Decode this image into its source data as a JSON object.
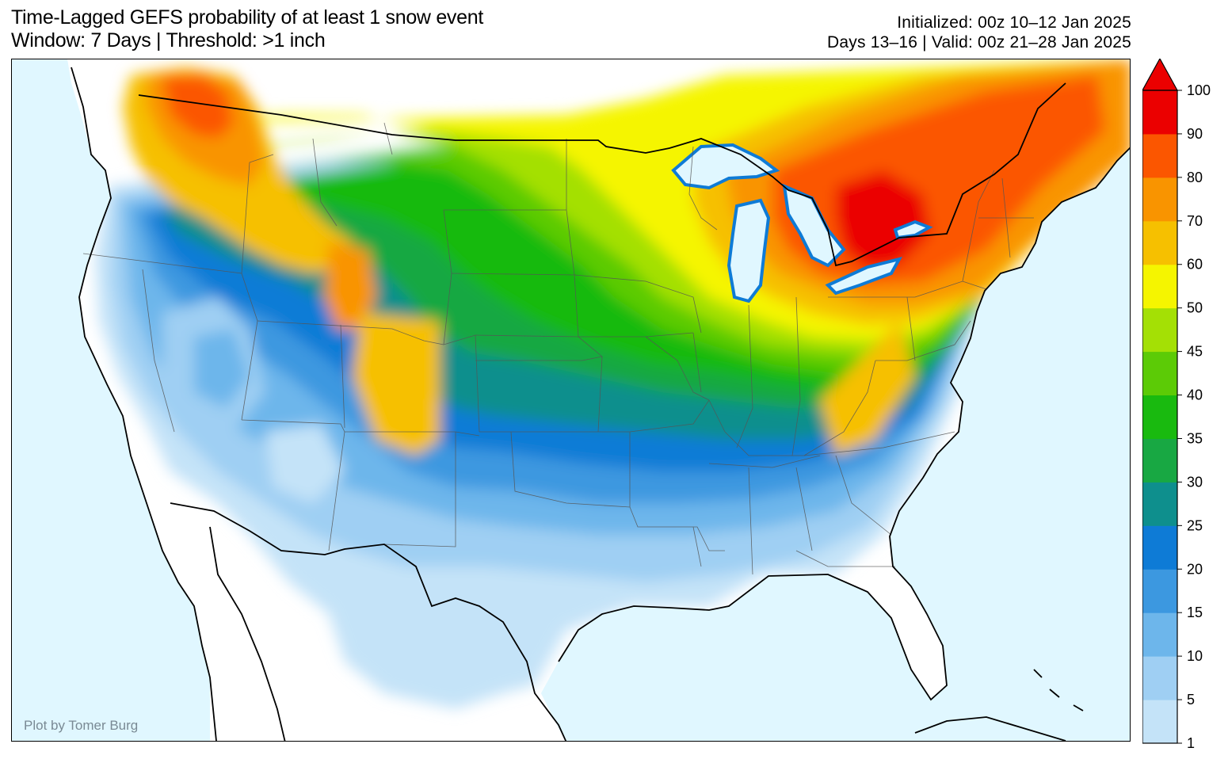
{
  "header": {
    "title_line1": "Time-Lagged GEFS probability of at least 1 snow event",
    "title_line2": "Window: 7 Days | Threshold: >1 inch",
    "init_line": "Initialized: 00z 10–12 Jan 2025",
    "valid_line": "Days 13–16 | Valid: 00z 21–28 Jan 2025"
  },
  "credit": "Plot by Tomer Burg",
  "colors": {
    "ocean": "#e0f7ff",
    "land_no_data": "#ffffff"
  },
  "colorbar": {
    "levels": [
      1,
      5,
      10,
      15,
      20,
      25,
      30,
      35,
      40,
      45,
      50,
      60,
      70,
      80,
      90,
      100
    ],
    "tick_labels": [
      "1",
      "5",
      "10",
      "15",
      "20",
      "25",
      "30",
      "35",
      "40",
      "45",
      "50",
      "60",
      "70",
      "80",
      "90",
      "100"
    ],
    "colors": [
      "#c4e3f8",
      "#9fcff3",
      "#6db6eb",
      "#3c98e0",
      "#0e7bd6",
      "#0e8f8d",
      "#18a843",
      "#19ba0f",
      "#5ccb06",
      "#a4e005",
      "#f5f500",
      "#f6c000",
      "#f99400",
      "#fb5600",
      "#eb0000"
    ],
    "extend": "max",
    "orientation": "vertical",
    "placement": "right"
  }
}
